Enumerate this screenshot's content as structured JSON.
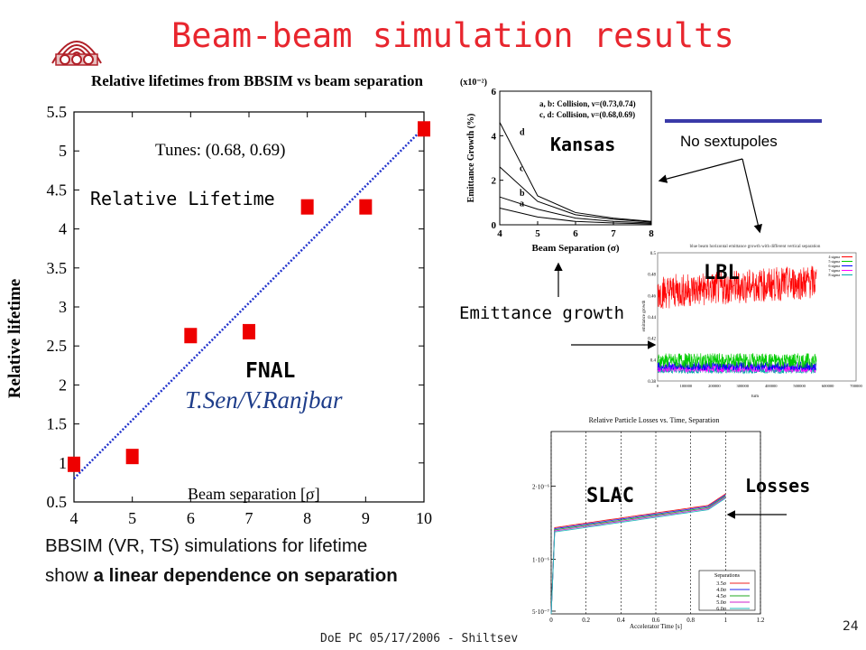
{
  "slide": {
    "title": "Beam-beam simulation results",
    "footer": "DoE PC 05/17/2006 - Shiltsev",
    "page_number": "24",
    "bbsim_text_line1": "BBSIM (VR, TS) simulations for lifetime",
    "bbsim_text_line2_prefix": "show ",
    "bbsim_text_line2_bold": "a linear dependence on separation",
    "colors": {
      "title": "#e8262e",
      "accent_bar": "#3a3aa8",
      "markers": "#ee0000",
      "fit_line": "#2233cc"
    }
  },
  "annotations": {
    "relative_lifetime": "Relative Lifetime",
    "fnal": "FNAL",
    "authors": "T.Sen/V.Ranjbar",
    "kansas": "Kansas",
    "no_sextupoles": "No sextupoles",
    "lbl": "LBL",
    "emittance_growth": "Emittance growth",
    "slac": "SLAC",
    "losses": "Losses"
  },
  "chart_data": [
    {
      "type": "scatter",
      "title": "Relative lifetimes from BBSIM vs beam separation",
      "xlabel": "Beam separation [σ]",
      "ylabel": "Relative lifetime",
      "annotation": "Tunes: (0.68, 0.69)",
      "xlim": [
        4,
        10
      ],
      "ylim": [
        0.5,
        5.5
      ],
      "x_ticks": [
        "4",
        "5",
        "6",
        "7",
        "8",
        "9",
        "10"
      ],
      "y_ticks": [
        "0.5",
        "1",
        "1.5",
        "2",
        "2.5",
        "3",
        "3.5",
        "4",
        "4.5",
        "5",
        "5.5"
      ],
      "x": [
        4,
        5,
        6,
        7,
        8,
        9,
        10
      ],
      "y": [
        1.0,
        1.1,
        2.65,
        2.7,
        4.3,
        4.3,
        5.3
      ],
      "fit_line": {
        "x": [
          4,
          10
        ],
        "y": [
          0.8,
          5.3
        ]
      },
      "grid": false
    },
    {
      "type": "line",
      "title": "",
      "xlabel": "Beam Separation (σ)",
      "ylabel": "Emittance Growth (%)",
      "scale_label": "(x10⁻²)",
      "xlim": [
        4,
        8
      ],
      "ylim": [
        0,
        6
      ],
      "x_ticks": [
        "4",
        "5",
        "6",
        "7",
        "8"
      ],
      "y_ticks": [
        "0",
        "2",
        "4",
        "6"
      ],
      "legend": [
        "a, b: Collision, ν=(0.73,0.74)",
        "c, d: Collision, ν=(0.68,0.69)"
      ],
      "legend_position": "top-right",
      "x": [
        4,
        5,
        6,
        7,
        8
      ],
      "series": [
        {
          "name": "d",
          "values": [
            4.6,
            1.3,
            0.55,
            0.3,
            0.15
          ]
        },
        {
          "name": "c",
          "values": [
            2.6,
            1.05,
            0.45,
            0.25,
            0.12
          ]
        },
        {
          "name": "b",
          "values": [
            1.25,
            0.7,
            0.3,
            0.15,
            0.08
          ]
        },
        {
          "name": "a",
          "values": [
            0.75,
            0.35,
            0.15,
            0.08,
            0.04
          ]
        }
      ]
    },
    {
      "type": "line",
      "title": "blue beam horizontal emittance growth with different vertical separation",
      "xlabel": "turn",
      "ylabel": "emittance growth",
      "xlim": [
        0,
        700000
      ],
      "ylim": [
        0.38,
        0.5
      ],
      "x_ticks": [
        "0",
        "100000",
        "200000",
        "300000",
        "400000",
        "500000",
        "600000",
        "700000"
      ],
      "y_ticks": [
        "0.38",
        "0.4",
        "0.42",
        "0.44",
        "0.46",
        "0.48",
        "0.5"
      ],
      "legend": [
        "4 sigma",
        "5 sigma",
        "6 sigma",
        "7 sigma",
        "8 sigma"
      ],
      "legend_position": "top-right"
    },
    {
      "type": "line",
      "title": "Relative Particle Losses vs. Time, Separation",
      "xlabel": "Accelerator Time [s]",
      "ylabel": "",
      "xlim": [
        0,
        1.2
      ],
      "x_ticks": [
        "0",
        "0.2",
        "0.4",
        "0.6",
        "0.8",
        "1",
        "1.2"
      ],
      "y_ticks": [
        "5·10⁻⁷",
        "1·10⁻⁶",
        "2·10⁻⁶"
      ],
      "legend_title": "Separations",
      "legend": [
        "3.5σ",
        "4.0σ",
        "4.5σ",
        "5.0σ",
        "6.0σ"
      ],
      "legend_position": "bottom-right"
    }
  ]
}
